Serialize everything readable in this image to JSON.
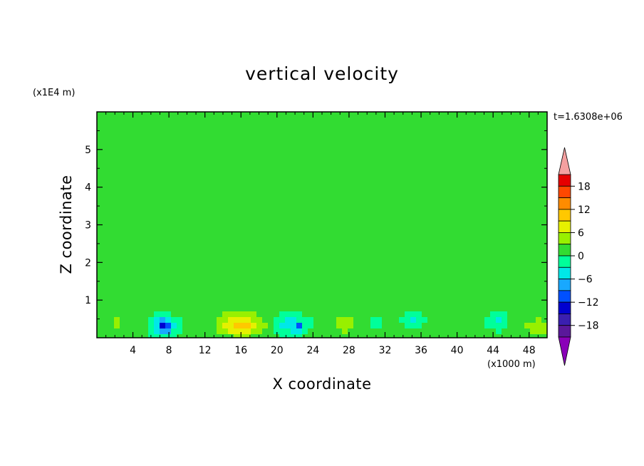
{
  "chart_data": {
    "type": "heatmap",
    "title": "vertical velocity",
    "xlabel": "X coordinate",
    "ylabel": "Z coordinate",
    "x_scale_label": "(x1000 m)",
    "y_scale_label": "(x1E4 m)",
    "time_label": "t=1.6308e+06",
    "xlim": [
      0,
      50
    ],
    "ylim": [
      0,
      6
    ],
    "x_ticks": [
      4,
      8,
      12,
      16,
      20,
      24,
      28,
      32,
      36,
      40,
      44,
      48
    ],
    "x_tick_labels": [
      "4",
      "8",
      "12",
      "16",
      "20",
      "24",
      "28",
      "32",
      "36",
      "40",
      "44",
      "48"
    ],
    "y_ticks": [
      1,
      2,
      3,
      4,
      5
    ],
    "y_tick_labels": [
      "1",
      "2",
      "3",
      "4",
      "5"
    ],
    "colorbar": {
      "levels": [
        -21,
        -18,
        -15,
        -12,
        -9,
        -6,
        -3,
        0,
        3,
        6,
        9,
        12,
        15,
        18,
        21
      ],
      "labeled_values": [
        18,
        12,
        6,
        0,
        -6,
        -12,
        -18
      ],
      "labels": [
        "18",
        "12",
        "6",
        "0",
        "−6",
        "−12",
        "−18"
      ],
      "colors": [
        "#8a00b8",
        "#5a189a",
        "#3a1fb0",
        "#0000d0",
        "#0050ff",
        "#18a8ff",
        "#00e8e8",
        "#00ff9a",
        "#32dc32",
        "#98f000",
        "#e6f000",
        "#ffc800",
        "#ff8c00",
        "#ff4800",
        "#e60000",
        "#f4a0a0"
      ]
    },
    "background_value": 0.5,
    "features": [
      {
        "kind": "band",
        "x0": 0,
        "x1": 50,
        "z0": 4.95,
        "z1": 5.25,
        "value": 1.5
      },
      {
        "kind": "band",
        "x0": 0,
        "x1": 50,
        "z0": 4.15,
        "z1": 4.55,
        "value": 1.5
      },
      {
        "kind": "band",
        "x0": 0,
        "x1": 50,
        "z0": 3.1,
        "z1": 3.35,
        "value": 1.5
      },
      {
        "kind": "band",
        "x0": 0,
        "x1": 50,
        "z0": 2.55,
        "z1": 2.95,
        "value": 1.5
      },
      {
        "kind": "band",
        "x0": 0,
        "x1": 50,
        "z0": 1.7,
        "z1": 2.1,
        "value": 1.5
      },
      {
        "kind": "band",
        "x0": 0,
        "x1": 50,
        "z0": 0.6,
        "z1": 1.5,
        "value": 1.5
      },
      {
        "kind": "blob",
        "x": 29,
        "z": 5.7,
        "rx": 8,
        "rz": 0.35,
        "value": 1.5
      },
      {
        "kind": "blob",
        "x": 34,
        "z": 3.0,
        "rx": 8,
        "rz": 0.6,
        "value": 1.5
      },
      {
        "kind": "blob",
        "x": 16,
        "z": 0.35,
        "rx": 3.5,
        "rz": 0.4,
        "value": 7
      },
      {
        "kind": "blob",
        "x": 16,
        "z": 0.3,
        "rx": 2,
        "rz": 0.25,
        "value": 10
      },
      {
        "kind": "blob",
        "x": 27.5,
        "z": 0.35,
        "rx": 2,
        "rz": 0.3,
        "value": 5
      },
      {
        "kind": "blob",
        "x": 49,
        "z": 0.3,
        "rx": 2.5,
        "rz": 0.3,
        "value": 5
      },
      {
        "kind": "blob",
        "x": 2.5,
        "z": 0.4,
        "rx": 1.2,
        "rz": 0.35,
        "value": 3.5
      },
      {
        "kind": "blob",
        "x": 7.5,
        "z": 0.3,
        "rx": 1.6,
        "rz": 0.35,
        "value": -7
      },
      {
        "kind": "blob",
        "x": 7.5,
        "z": 0.3,
        "rx": 0.8,
        "rz": 0.18,
        "value": -13
      },
      {
        "kind": "blob",
        "x": 21.5,
        "z": 0.35,
        "rx": 2,
        "rz": 0.35,
        "value": -5
      },
      {
        "kind": "blob",
        "x": 22.5,
        "z": 0.28,
        "rx": 0.6,
        "rz": 0.14,
        "value": -10
      },
      {
        "kind": "blob",
        "x": 35,
        "z": 0.5,
        "rx": 1.2,
        "rz": 0.25,
        "value": -4
      },
      {
        "kind": "blob",
        "x": 44.5,
        "z": 0.5,
        "rx": 1.2,
        "rz": 0.3,
        "value": -4
      },
      {
        "kind": "blob",
        "x": 31,
        "z": 0.4,
        "rx": 0.8,
        "rz": 0.2,
        "value": -4
      }
    ]
  }
}
